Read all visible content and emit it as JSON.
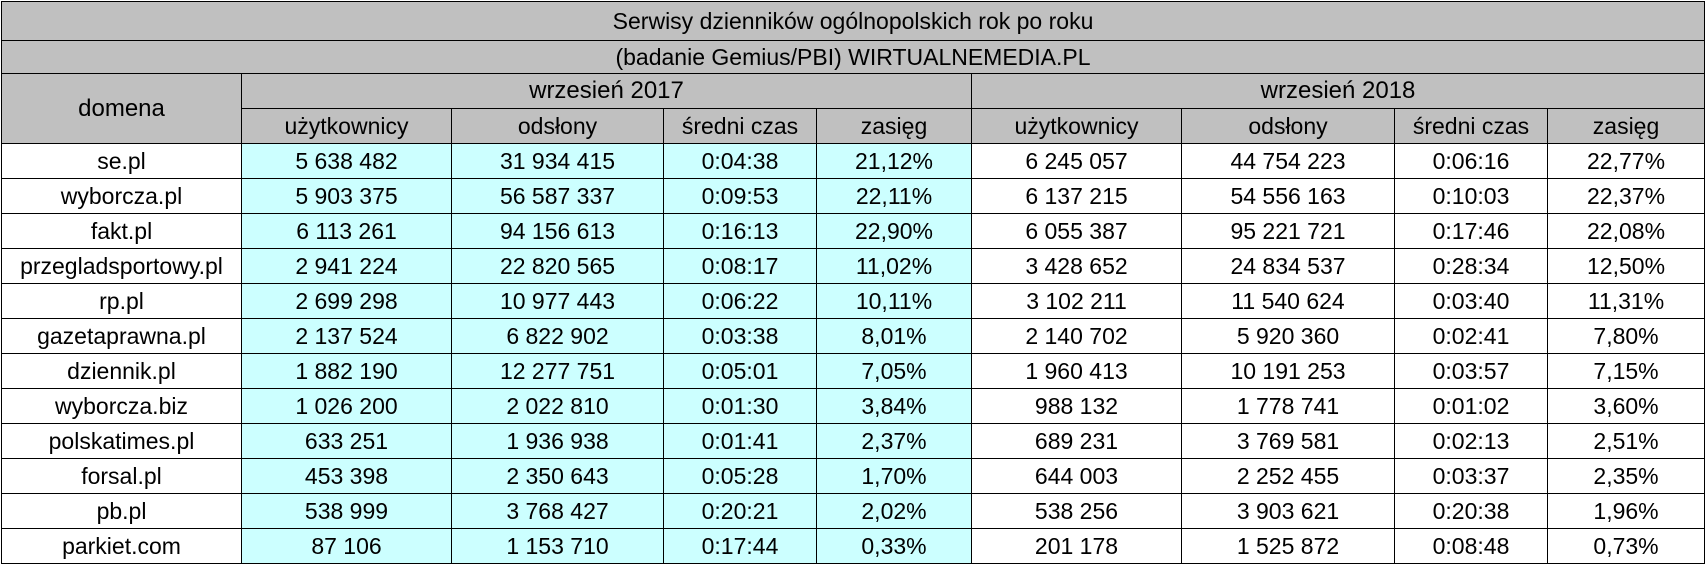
{
  "title": "Serwisy dzienników ogólnopolskich rok po roku",
  "subtitle": "(badanie Gemius/PBI) WIRTUALNEMEDIA.PL",
  "domain_header": "domena",
  "periods": [
    "wrzesień 2017",
    "wrzesień 2018"
  ],
  "columns": [
    "użytkownicy",
    "odsłony",
    "średni czas",
    "zasięg"
  ],
  "rows": [
    {
      "domain": "se.pl",
      "p2017": [
        "5 638 482",
        "31 934 415",
        "0:04:38",
        "21,12%"
      ],
      "p2018": [
        "6 245 057",
        "44 754 223",
        "0:06:16",
        "22,77%"
      ]
    },
    {
      "domain": "wyborcza.pl",
      "p2017": [
        "5 903 375",
        "56 587 337",
        "0:09:53",
        "22,11%"
      ],
      "p2018": [
        "6 137 215",
        "54 556 163",
        "0:10:03",
        "22,37%"
      ]
    },
    {
      "domain": "fakt.pl",
      "p2017": [
        "6 113 261",
        "94 156 613",
        "0:16:13",
        "22,90%"
      ],
      "p2018": [
        "6 055 387",
        "95 221 721",
        "0:17:46",
        "22,08%"
      ]
    },
    {
      "domain": "przegladsportowy.pl",
      "p2017": [
        "2 941 224",
        "22 820 565",
        "0:08:17",
        "11,02%"
      ],
      "p2018": [
        "3 428 652",
        "24 834 537",
        "0:28:34",
        "12,50%"
      ]
    },
    {
      "domain": "rp.pl",
      "p2017": [
        "2 699 298",
        "10 977 443",
        "0:06:22",
        "10,11%"
      ],
      "p2018": [
        "3 102 211",
        "11 540 624",
        "0:03:40",
        "11,31%"
      ]
    },
    {
      "domain": "gazetaprawna.pl",
      "p2017": [
        "2 137 524",
        "6 822 902",
        "0:03:38",
        "8,01%"
      ],
      "p2018": [
        "2 140 702",
        "5 920 360",
        "0:02:41",
        "7,80%"
      ]
    },
    {
      "domain": "dziennik.pl",
      "p2017": [
        "1 882 190",
        "12 277 751",
        "0:05:01",
        "7,05%"
      ],
      "p2018": [
        "1 960 413",
        "10 191 253",
        "0:03:57",
        "7,15%"
      ]
    },
    {
      "domain": "wyborcza.biz",
      "p2017": [
        "1 026 200",
        "2 022 810",
        "0:01:30",
        "3,84%"
      ],
      "p2018": [
        "988 132",
        "1 778 741",
        "0:01:02",
        "3,60%"
      ]
    },
    {
      "domain": "polskatimes.pl",
      "p2017": [
        "633 251",
        "1 936 938",
        "0:01:41",
        "2,37%"
      ],
      "p2018": [
        "689 231",
        "3 769 581",
        "0:02:13",
        "2,51%"
      ]
    },
    {
      "domain": "forsal.pl",
      "p2017": [
        "453 398",
        "2 350 643",
        "0:05:28",
        "1,70%"
      ],
      "p2018": [
        "644 003",
        "2 252 455",
        "0:03:37",
        "2,35%"
      ]
    },
    {
      "domain": "pb.pl",
      "p2017": [
        "538 999",
        "3 768 427",
        "0:20:21",
        "2,02%"
      ],
      "p2018": [
        "538 256",
        "3 903 621",
        "0:20:38",
        "1,96%"
      ]
    },
    {
      "domain": "parkiet.com",
      "p2017": [
        "87 106",
        "1 153 710",
        "0:17:44",
        "0,33%"
      ],
      "p2018": [
        "201 178",
        "1 525 872",
        "0:08:48",
        "0,73%"
      ]
    }
  ],
  "colors": {
    "header_bg": "#c0c0c0",
    "highlight_2017": "#ccffff",
    "border": "#000000"
  }
}
